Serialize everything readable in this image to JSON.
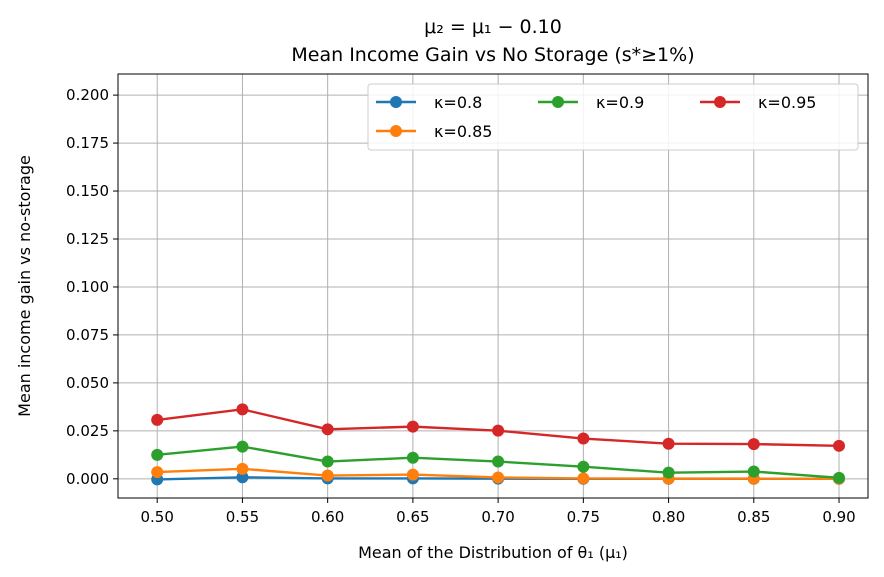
{
  "chart_data": {
    "type": "line",
    "title": "μ₂ = μ₁ − 0.10",
    "subtitle": "Mean Income Gain vs No Storage (s*≥1%)",
    "xlabel": "Mean of the Distribution of θ₁ (μ₁)",
    "ylabel": "Mean income gain vs no-storage",
    "x": [
      0.5,
      0.55,
      0.6,
      0.65,
      0.7,
      0.75,
      0.8,
      0.85,
      0.9
    ],
    "x_tick_labels": [
      "0.50",
      "0.55",
      "0.60",
      "0.65",
      "0.70",
      "0.75",
      "0.80",
      "0.85",
      "0.90"
    ],
    "y_ticks": [
      0.0,
      0.025,
      0.05,
      0.075,
      0.1,
      0.125,
      0.15,
      0.175,
      0.2
    ],
    "y_tick_labels": [
      "0.000",
      "0.025",
      "0.050",
      "0.075",
      "0.100",
      "0.125",
      "0.150",
      "0.175",
      "0.200"
    ],
    "xlim": [
      0.477,
      0.917
    ],
    "ylim": [
      -0.01,
      0.211
    ],
    "grid": true,
    "legend_position": "top-right",
    "legend_columns": 3,
    "series": [
      {
        "name": "κ=0.8",
        "color": "#1f77b4",
        "values": [
          -0.0003,
          0.0008,
          0.0002,
          0.0002,
          0.0001,
          0.0,
          0.0,
          0.0,
          0.0
        ]
      },
      {
        "name": "κ=0.85",
        "color": "#ff7f0e",
        "values": [
          0.0035,
          0.0052,
          0.0017,
          0.0022,
          0.0007,
          0.0002,
          0.0001,
          0.0001,
          0.0
        ]
      },
      {
        "name": "κ=0.9",
        "color": "#2ca02c",
        "values": [
          0.0125,
          0.0168,
          0.009,
          0.011,
          0.009,
          0.0063,
          0.0032,
          0.0038,
          0.0005
        ]
      },
      {
        "name": "κ=0.95",
        "color": "#d62728",
        "values": [
          0.0307,
          0.0362,
          0.0258,
          0.0272,
          0.0251,
          0.021,
          0.0183,
          0.0181,
          0.0172
        ]
      }
    ]
  }
}
